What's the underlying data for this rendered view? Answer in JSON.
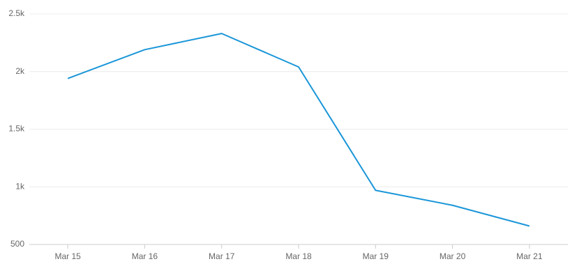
{
  "chart_data": {
    "type": "line",
    "categories": [
      "Mar 15",
      "Mar 16",
      "Mar 17",
      "Mar 18",
      "Mar 19",
      "Mar 20",
      "Mar 21"
    ],
    "series": [
      {
        "color": "#1a96d8",
        "values": [
          1940,
          2190,
          2330,
          2040,
          970,
          840,
          660
        ]
      }
    ],
    "ylim": [
      500,
      2500
    ],
    "yticks": [
      500,
      {
        "value": 1000,
        "label": "1k"
      },
      {
        "value": 1500,
        "label": "1.5k"
      },
      {
        "value": 2000,
        "label": "2k"
      },
      {
        "value": 2500,
        "label": "2.5k"
      }
    ],
    "grid": true
  }
}
